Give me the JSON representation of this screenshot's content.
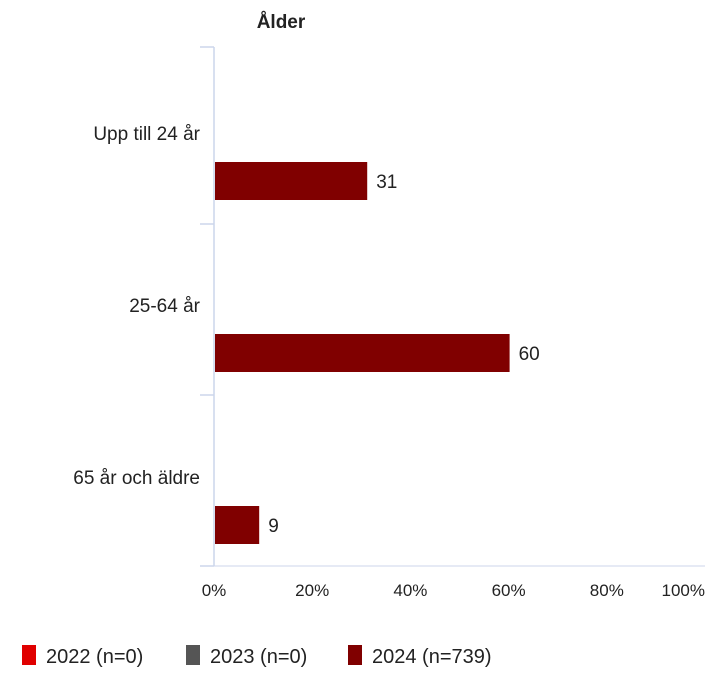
{
  "chart_data": {
    "type": "bar",
    "orientation": "horizontal",
    "title": "Ålder",
    "categories": [
      "Upp till 24 år",
      "25-64 år",
      "65 år och äldre"
    ],
    "series": [
      {
        "name": "2022 (n=0)",
        "color": "#e00000",
        "values": [
          null,
          null,
          null
        ]
      },
      {
        "name": "2023 (n=0)",
        "color": "#555555",
        "values": [
          null,
          null,
          null
        ]
      },
      {
        "name": "2024 (n=739)",
        "color": "#800000",
        "values": [
          31,
          60,
          9
        ]
      }
    ],
    "data_labels": [
      "31",
      "60",
      "9"
    ],
    "xlim": [
      0,
      100
    ],
    "x_ticks": [
      "0%",
      "20%",
      "40%",
      "60%",
      "80%",
      "100%"
    ],
    "grid": false,
    "legend": "bottom-left"
  }
}
